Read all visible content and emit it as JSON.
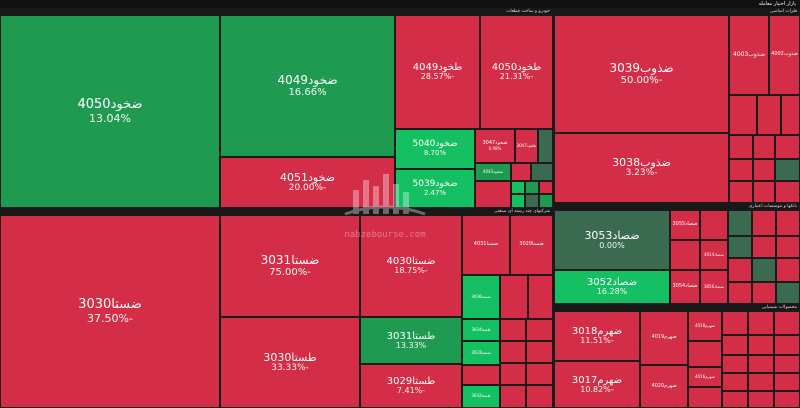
{
  "header": {
    "title": "بازار اختیار معامله"
  },
  "colors": {
    "up": "#1e9b50",
    "up_strong": "#14c061",
    "up_dim": "#3a6b50",
    "down": "#d42d47",
    "down_strong": "#c21f3a"
  },
  "watermark": {
    "text": "nabzebourse.com",
    "logo": "nabzebourse-logo-icon"
  },
  "sectors": [
    {
      "title": "خودرو و ساخت قطعات"
    },
    {
      "title": "فلزات اساسی"
    },
    {
      "title": "شرکتهای چند رشته ای صنعتی"
    },
    {
      "title": "بانکها و موسسات اعتباری"
    },
    {
      "title": "محصولات شیمیایی"
    }
  ],
  "tiles": {
    "z4050": {
      "sym": "ضخود4050",
      "pct": "13.04%"
    },
    "z4049": {
      "sym": "ضخود4049",
      "pct": "16.66%"
    },
    "z4051": {
      "sym": "ضخود4051",
      "pct": "-20.00%"
    },
    "t4049": {
      "sym": "طخود4049",
      "pct": "-28.57%"
    },
    "t4050": {
      "sym": "طخود4050",
      "pct": "-21.31%"
    },
    "z5040": {
      "sym": "ضخود5040",
      "pct": "8.70%"
    },
    "z5039": {
      "sym": "ضخود5039",
      "pct": "2.47%"
    },
    "s1": {
      "sym": "ضخود3047",
      "pct": "0.98%"
    },
    "s2": {
      "sym": "ضخود4043",
      "pct": ""
    },
    "s3": {
      "sym": "طخود3047",
      "pct": ""
    },
    "zz3039": {
      "sym": "ضذوب3039",
      "pct": "-50.00%"
    },
    "zz3038": {
      "sym": "ضذوب3038",
      "pct": "-3.23%"
    },
    "zz4003": {
      "sym": "ضذوب4003",
      "pct": ""
    },
    "zz4002": {
      "sym": "ضذوب4002",
      "pct": ""
    },
    "st3030": {
      "sym": "ضستا3030",
      "pct": "-37.50%"
    },
    "st3031": {
      "sym": "ضستا3031",
      "pct": "-75.00%"
    },
    "tst3030": {
      "sym": "طستا3030",
      "pct": "-33.33%"
    },
    "st4030": {
      "sym": "ضستا4030",
      "pct": "-18.75%"
    },
    "tst3031": {
      "sym": "طستا3031",
      "pct": "13.33%"
    },
    "tst3029": {
      "sym": "طستا3029",
      "pct": "-7.41%"
    },
    "st4031": {
      "sym": "ضستا4031",
      "pct": ""
    },
    "st3029": {
      "sym": "ضستا3029",
      "pct": ""
    },
    "st3036": {
      "sym": "ضستا3036",
      "pct": ""
    },
    "st3034": {
      "sym": "طستا3034",
      "pct": ""
    },
    "st3033": {
      "sym": "ضستا3033",
      "pct": ""
    },
    "st3032": {
      "sym": "طستا3032",
      "pct": ""
    },
    "sa3053": {
      "sym": "ضصاد3053",
      "pct": "0.00%"
    },
    "sa3052": {
      "sym": "ضصاد3052",
      "pct": "16.28%"
    },
    "sa3055": {
      "sym": "ضصاد3055",
      "pct": ""
    },
    "sa3054": {
      "sym": "ضصاد3054",
      "pct": ""
    },
    "sa3056": {
      "sym": "ضصاد3056",
      "pct": ""
    },
    "sa4014": {
      "sym": "ضصاد4014",
      "pct": ""
    },
    "h3018": {
      "sym": "ضهرم3018",
      "pct": "-11.51%"
    },
    "h3017": {
      "sym": "ضهرم3017",
      "pct": "-10.82%"
    },
    "h4019": {
      "sym": "ضهرم4019",
      "pct": ""
    },
    "h4018": {
      "sym": "ضهرم4018",
      "pct": ""
    },
    "h4020": {
      "sym": "ضهرم4020",
      "pct": ""
    },
    "h4016": {
      "sym": "ضهرم4016",
      "pct": ""
    }
  }
}
